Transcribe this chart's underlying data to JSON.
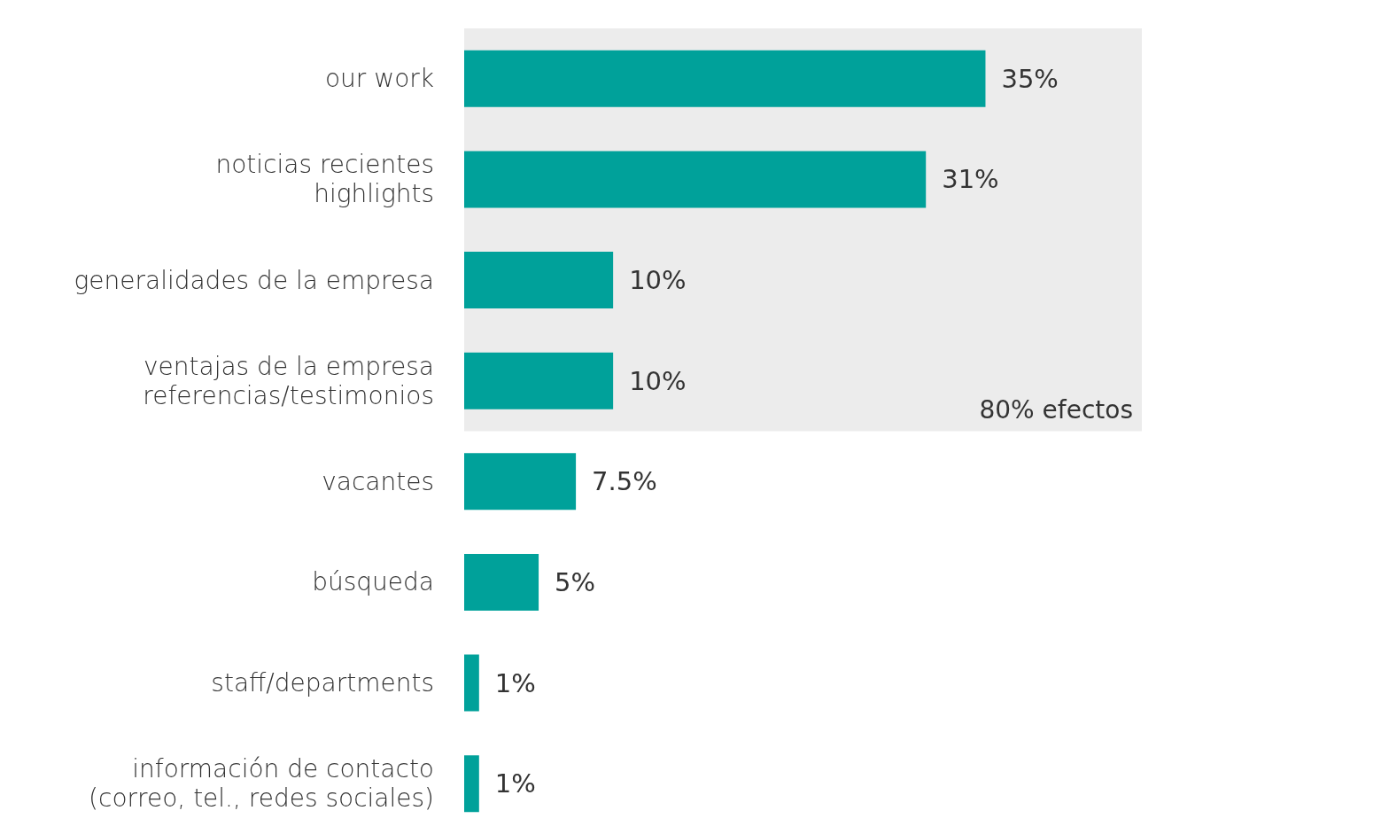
{
  "chart_data": {
    "type": "bar",
    "orientation": "horizontal",
    "categories": [
      "our work",
      "noticias recientes\nhighlights",
      "generalidades de la empresa",
      "ventajas de la empresa\nreferencias/testimonios",
      "vacantes",
      "búsqueda",
      "staff/departments",
      "información de contacto\n(correo, tel., redes sociales)"
    ],
    "values": [
      35,
      31,
      10,
      10,
      7.5,
      5,
      1,
      1
    ],
    "value_labels": [
      "35%",
      "31%",
      "10%",
      "10%",
      "7.5%",
      "5%",
      "1%",
      "1%"
    ],
    "color": "#00a19a",
    "bands": [
      {
        "axis": "y",
        "from": "our work",
        "to": "ventajas de la empresa\nreferencias/testimonios",
        "label": "80% efectos",
        "color": "#ececec"
      }
    ],
    "grid": false
  }
}
